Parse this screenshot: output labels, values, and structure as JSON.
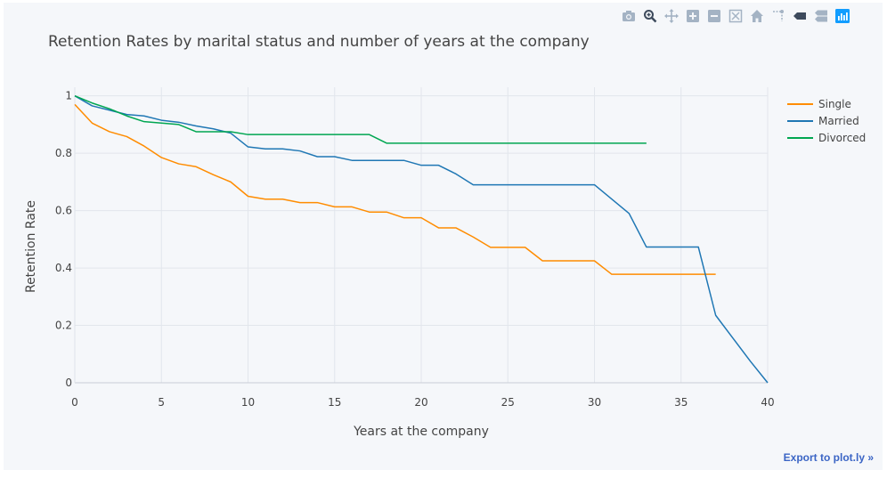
{
  "modebar": {
    "buttons": [
      "camera-icon",
      "zoom-icon",
      "pan-icon",
      "zoom-in-icon",
      "zoom-out-icon",
      "autoscale-icon",
      "reset-axes-icon",
      "spike-lines-icon",
      "hover-closest-icon",
      "hover-compare-icon",
      "plotly-logo-icon"
    ]
  },
  "export_link": "Export to plot.ly »",
  "colors": {
    "single": "#ff8c00",
    "married": "#1f77b4",
    "divorced": "#00a651",
    "grid": "#e2e6ec",
    "text": "#444444"
  },
  "chart_data": {
    "type": "line",
    "title": "Retention Rates by marital status and number of years at the company",
    "xlabel": "Years at the company",
    "ylabel": "Retention Rate",
    "xlim": [
      0,
      40
    ],
    "ylim": [
      0,
      1.03
    ],
    "xticks": [
      0,
      5,
      10,
      15,
      20,
      25,
      30,
      35,
      40
    ],
    "yticks": [
      0,
      0.2,
      0.4,
      0.6,
      0.8,
      1
    ],
    "ytick_labels": [
      "0",
      "0.2",
      "0.4",
      "0.6",
      "0.8",
      "1"
    ],
    "grid": true,
    "legend_position": "top-right",
    "series": [
      {
        "name": "Single",
        "color": "#ff8c00",
        "x": [
          0,
          1,
          2,
          3,
          4,
          5,
          6,
          7,
          8,
          9,
          10,
          11,
          12,
          13,
          14,
          15,
          16,
          17,
          18,
          19,
          20,
          21,
          22,
          23,
          24,
          25,
          26,
          27,
          28,
          29,
          30,
          31,
          32,
          33,
          34,
          35,
          36,
          37
        ],
        "y": [
          0.97,
          0.905,
          0.875,
          0.858,
          0.825,
          0.785,
          0.763,
          0.753,
          0.725,
          0.7,
          0.65,
          0.64,
          0.64,
          0.628,
          0.628,
          0.613,
          0.613,
          0.595,
          0.595,
          0.575,
          0.575,
          0.54,
          0.54,
          0.508,
          0.472,
          0.472,
          0.472,
          0.425,
          0.425,
          0.425,
          0.425,
          0.378,
          0.378,
          0.378,
          0.378,
          0.378,
          0.378,
          0.378
        ]
      },
      {
        "name": "Married",
        "color": "#1f77b4",
        "x": [
          0,
          1,
          2,
          3,
          4,
          5,
          6,
          7,
          8,
          9,
          10,
          11,
          12,
          13,
          14,
          15,
          16,
          17,
          18,
          19,
          20,
          21,
          22,
          23,
          24,
          25,
          26,
          27,
          28,
          29,
          30,
          31,
          32,
          33,
          34,
          35,
          36,
          37,
          38,
          39,
          40
        ],
        "y": [
          1.0,
          0.965,
          0.95,
          0.935,
          0.93,
          0.915,
          0.908,
          0.895,
          0.885,
          0.87,
          0.822,
          0.815,
          0.815,
          0.808,
          0.788,
          0.788,
          0.775,
          0.775,
          0.775,
          0.775,
          0.758,
          0.758,
          0.728,
          0.69,
          0.69,
          0.69,
          0.69,
          0.69,
          0.69,
          0.69,
          0.69,
          0.64,
          0.59,
          0.473,
          0.473,
          0.473,
          0.473,
          0.235,
          0.155,
          0.075,
          0.0
        ]
      },
      {
        "name": "Divorced",
        "color": "#00a651",
        "x": [
          0,
          1,
          2,
          3,
          4,
          5,
          6,
          7,
          8,
          9,
          10,
          11,
          12,
          13,
          14,
          15,
          16,
          17,
          18,
          19,
          20,
          21,
          22,
          23,
          24,
          25,
          26,
          27,
          28,
          29,
          30,
          31,
          32,
          33
        ],
        "y": [
          1.0,
          0.975,
          0.955,
          0.93,
          0.91,
          0.905,
          0.9,
          0.875,
          0.875,
          0.875,
          0.865,
          0.865,
          0.865,
          0.865,
          0.865,
          0.865,
          0.865,
          0.865,
          0.835,
          0.835,
          0.835,
          0.835,
          0.835,
          0.835,
          0.835,
          0.835,
          0.835,
          0.835,
          0.835,
          0.835,
          0.835,
          0.835,
          0.835,
          0.835
        ]
      }
    ]
  }
}
